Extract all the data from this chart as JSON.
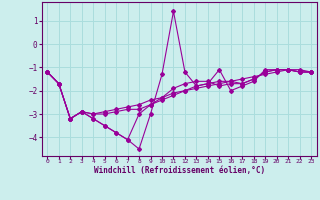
{
  "xlabel": "Windchill (Refroidissement éolien,°C)",
  "ylabel": "",
  "background_color": "#cceeed",
  "grid_color": "#aadddd",
  "line_color": "#990099",
  "xlim": [
    -0.5,
    23.5
  ],
  "ylim": [
    -4.8,
    1.8
  ],
  "yticks": [
    -4,
    -3,
    -2,
    -1,
    0,
    1
  ],
  "xticks": [
    0,
    1,
    2,
    3,
    4,
    5,
    6,
    7,
    8,
    9,
    10,
    11,
    12,
    13,
    14,
    15,
    16,
    17,
    18,
    19,
    20,
    21,
    22,
    23
  ],
  "series": {
    "main": {
      "x": [
        0,
        1,
        2,
        3,
        4,
        5,
        6,
        7,
        8,
        9,
        10,
        11,
        12,
        13,
        14,
        15,
        16,
        17,
        18,
        19,
        20,
        21,
        22,
        23
      ],
      "y": [
        -1.2,
        -1.7,
        -3.2,
        -2.9,
        -3.2,
        -3.5,
        -3.8,
        -4.1,
        -4.5,
        -3.0,
        -1.3,
        1.4,
        -1.2,
        -1.8,
        -1.7,
        -1.1,
        -2.0,
        -1.8,
        -1.6,
        -1.1,
        -1.1,
        -1.1,
        -1.2,
        -1.2
      ]
    },
    "line2": {
      "x": [
        0,
        1,
        2,
        3,
        4,
        5,
        6,
        7,
        8,
        9,
        10,
        11,
        12,
        13,
        14,
        15,
        16,
        17,
        18,
        19,
        20,
        21,
        22,
        23
      ],
      "y": [
        -1.2,
        -1.7,
        -3.2,
        -2.9,
        -3.2,
        -3.5,
        -3.8,
        -4.1,
        -3.0,
        -2.6,
        -2.3,
        -1.9,
        -1.7,
        -1.6,
        -1.6,
        -1.8,
        -1.7,
        -1.7,
        -1.5,
        -1.2,
        -1.1,
        -1.1,
        -1.2,
        -1.2
      ]
    },
    "line3": {
      "x": [
        0,
        1,
        2,
        3,
        4,
        5,
        6,
        7,
        8,
        9,
        10,
        11,
        12,
        13,
        14,
        15,
        16,
        17,
        18,
        19,
        20,
        21,
        22,
        23
      ],
      "y": [
        -1.2,
        -1.7,
        -3.2,
        -2.9,
        -3.0,
        -3.0,
        -2.9,
        -2.8,
        -2.8,
        -2.6,
        -2.4,
        -2.2,
        -2.0,
        -1.8,
        -1.7,
        -1.6,
        -1.6,
        -1.7,
        -1.5,
        -1.2,
        -1.1,
        -1.1,
        -1.2,
        -1.2
      ]
    },
    "line4": {
      "x": [
        0,
        1,
        2,
        3,
        4,
        5,
        6,
        7,
        8,
        9,
        10,
        11,
        12,
        13,
        14,
        15,
        16,
        17,
        18,
        19,
        20,
        21,
        22,
        23
      ],
      "y": [
        -1.2,
        -1.7,
        -3.2,
        -2.9,
        -3.0,
        -2.9,
        -2.8,
        -2.7,
        -2.6,
        -2.4,
        -2.3,
        -2.1,
        -2.0,
        -1.9,
        -1.8,
        -1.7,
        -1.6,
        -1.5,
        -1.4,
        -1.3,
        -1.2,
        -1.1,
        -1.1,
        -1.2
      ]
    }
  }
}
